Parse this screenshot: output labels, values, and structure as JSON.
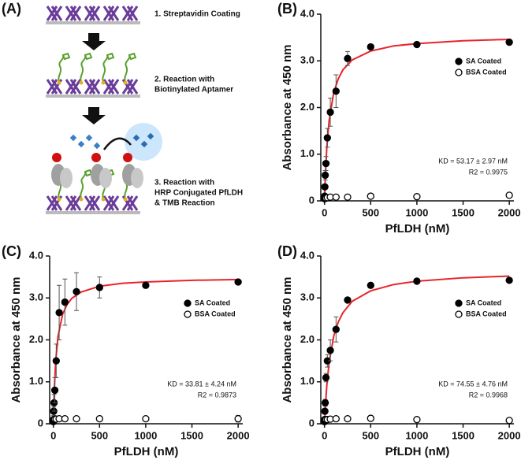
{
  "panel_a": {
    "label": "(A)",
    "steps": [
      [
        "1. Streptavidin Coating"
      ],
      [
        "2. Reaction with",
        "Biotinylated Aptamer"
      ],
      [
        "3. Reaction with",
        "HRP Conjugated PfLDH",
        "& TMB Reaction"
      ]
    ]
  },
  "chart_data": [
    {
      "type": "scatter",
      "panel_label": "(B)",
      "xlabel": "PfLDH (nM)",
      "ylabel": "Absorbance at 450 nm",
      "xlim": [
        -40,
        2050
      ],
      "ylim": [
        0,
        4
      ],
      "xticks": [
        0,
        500,
        1000,
        1500,
        2000
      ],
      "yticks": [
        0,
        {
          "value": 1,
          "label": "1.0"
        },
        {
          "value": 2,
          "label": "2.0"
        },
        {
          "value": 3,
          "label": "3.0"
        },
        {
          "value": 4,
          "label": "4.0"
        }
      ],
      "legend": "upper right",
      "annotations": [
        "KD = 53.17 ± 2.97 nM",
        "R2 = 0.9975"
      ],
      "x": [
        0,
        2,
        4,
        8,
        16,
        31,
        63,
        125,
        250,
        500,
        1000,
        2000
      ],
      "series": [
        {
          "name": "SA Coated",
          "color": "#000000",
          "values": [
            0.05,
            0.1,
            0.3,
            0.55,
            0.8,
            1.35,
            1.9,
            2.35,
            3.05,
            3.3,
            3.35,
            3.4
          ],
          "errors": [
            0.02,
            0.02,
            0.05,
            0.1,
            0.15,
            0.2,
            0.3,
            0.35,
            0.15,
            0.05,
            0.03,
            0.03
          ]
        },
        {
          "name": "BSA Coated",
          "color": "#ffffff",
          "values": [
            0.05,
            0.05,
            0.05,
            0.06,
            0.06,
            0.07,
            0.08,
            0.08,
            0.08,
            0.1,
            0.09,
            0.12
          ],
          "errors": [
            0.01,
            0.01,
            0.01,
            0.01,
            0.01,
            0.02,
            0.02,
            0.02,
            0.02,
            0.02,
            0.02,
            0.04
          ]
        }
      ],
      "curve": {
        "color": "#e8242a",
        "x": [
          0,
          10,
          25,
          50,
          100,
          150,
          200,
          300,
          500,
          750,
          1000,
          1500,
          2000
        ],
        "values": [
          0,
          0.56,
          1.14,
          1.72,
          2.32,
          2.62,
          2.81,
          3.02,
          3.21,
          3.32,
          3.37,
          3.43,
          3.46
        ]
      }
    },
    {
      "type": "scatter",
      "panel_label": "(C)",
      "xlabel": "PfLDH (nM)",
      "ylabel": "Absorbance at 450 nm",
      "xlim": [
        -40,
        2050
      ],
      "ylim": [
        0,
        4
      ],
      "xticks": [
        0,
        500,
        1000,
        1500,
        2000
      ],
      "yticks": [
        0,
        {
          "value": 1,
          "label": "1.0"
        },
        {
          "value": 2,
          "label": "2.0"
        },
        {
          "value": 3,
          "label": "3.0"
        },
        {
          "value": 4,
          "label": "4.0"
        }
      ],
      "legend": "upper right",
      "annotations": [
        "KD = 33.81 ± 4.24 nM",
        "R2 = 0.9873"
      ],
      "x": [
        0,
        2,
        4,
        8,
        16,
        31,
        63,
        125,
        250,
        500,
        1000,
        2000
      ],
      "series": [
        {
          "name": "SA Coated",
          "color": "#000000",
          "values": [
            0.05,
            0.1,
            0.3,
            0.5,
            0.8,
            1.5,
            2.65,
            2.9,
            3.15,
            3.25,
            3.3,
            3.38
          ],
          "errors": [
            0.02,
            0.05,
            0.1,
            0.2,
            0.3,
            0.4,
            0.65,
            0.55,
            0.45,
            0.25,
            0.05,
            0.05
          ]
        },
        {
          "name": "BSA Coated",
          "color": "#ffffff",
          "values": [
            0.08,
            0.1,
            0.1,
            0.1,
            0.11,
            0.11,
            0.12,
            0.12,
            0.12,
            0.12,
            0.12,
            0.12
          ],
          "errors": [
            0.02,
            0.02,
            0.02,
            0.02,
            0.03,
            0.03,
            0.04,
            0.04,
            0.04,
            0.03,
            0.03,
            0.08
          ]
        }
      ],
      "curve": {
        "color": "#e8242a",
        "x": [
          0,
          10,
          25,
          50,
          100,
          150,
          200,
          300,
          500,
          750,
          1000,
          1500,
          2000
        ],
        "values": [
          0,
          0.8,
          1.48,
          2.08,
          2.61,
          2.85,
          2.99,
          3.14,
          3.28,
          3.35,
          3.38,
          3.42,
          3.44
        ]
      }
    },
    {
      "type": "scatter",
      "panel_label": "(D)",
      "xlabel": "PfLDH (nM)",
      "ylabel": "Absorbance at 450 nm",
      "xlim": [
        -40,
        2050
      ],
      "ylim": [
        0,
        4
      ],
      "xticks": [
        0,
        500,
        1000,
        1500,
        2000
      ],
      "yticks": [
        0,
        {
          "value": 1,
          "label": "1.0"
        },
        {
          "value": 2,
          "label": "2.0"
        },
        {
          "value": 3,
          "label": "3.0"
        },
        {
          "value": 4,
          "label": "4.0"
        }
      ],
      "legend": "upper right",
      "annotations": [
        "KD = 74.55 ± 4.76 nM",
        "R2 = 0.9968"
      ],
      "x": [
        0,
        2,
        4,
        8,
        16,
        31,
        63,
        125,
        250,
        500,
        1000,
        2000
      ],
      "series": [
        {
          "name": "SA Coated",
          "color": "#000000",
          "values": [
            0.05,
            0.1,
            0.3,
            0.5,
            1.1,
            1.5,
            1.75,
            2.25,
            2.95,
            3.3,
            3.4,
            3.42
          ],
          "errors": [
            0.02,
            0.03,
            0.05,
            0.08,
            0.1,
            0.15,
            0.25,
            0.3,
            0.05,
            0.05,
            0.05,
            0.05
          ]
        },
        {
          "name": "BSA Coated",
          "color": "#ffffff",
          "values": [
            0.06,
            0.08,
            0.09,
            0.1,
            0.1,
            0.1,
            0.11,
            0.12,
            0.12,
            0.13,
            0.1,
            0.08
          ],
          "errors": [
            0.02,
            0.02,
            0.02,
            0.03,
            0.03,
            0.03,
            0.04,
            0.05,
            0.05,
            0.05,
            0.03,
            0.02
          ]
        }
      ],
      "curve": {
        "color": "#e8242a",
        "x": [
          0,
          10,
          25,
          50,
          100,
          150,
          200,
          300,
          500,
          750,
          1000,
          1500,
          2000
        ],
        "values": [
          0,
          0.43,
          0.91,
          1.46,
          2.09,
          2.43,
          2.65,
          2.92,
          3.17,
          3.32,
          3.4,
          3.48,
          3.52
        ]
      }
    }
  ]
}
